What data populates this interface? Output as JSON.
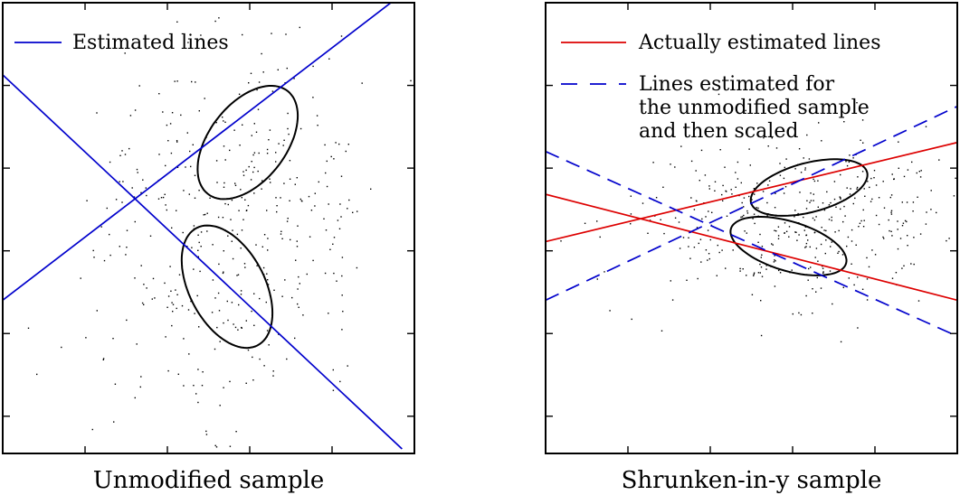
{
  "chart_data": [
    {
      "type": "scatter",
      "title": "Unmodified sample",
      "xlim": [
        -5,
        5
      ],
      "ylim": [
        -5,
        5
      ],
      "grid": false,
      "legend_placement": "top-left",
      "legend": [
        {
          "label": "Estimated lines",
          "color": "#0000cc",
          "style": "solid"
        }
      ],
      "lines": [
        {
          "name": "Estimated lines",
          "points": [
            [
              -5,
              -1.6
            ],
            [
              5,
              5.4
            ]
          ],
          "color": "#0000cc",
          "style": "solid"
        },
        {
          "name": "Estimated lines",
          "points": [
            [
              -5,
              3.4
            ],
            [
              4.7,
              -4.9
            ]
          ],
          "color": "#0000cc",
          "style": "solid"
        }
      ],
      "ellipses": [
        {
          "cx": 0.95,
          "cy": 1.9,
          "rx": 1.5,
          "ry": 0.9,
          "angle_deg": 47
        },
        {
          "cx": 0.45,
          "cy": -1.3,
          "rx": 1.5,
          "ry": 0.9,
          "angle_deg": -58
        }
      ],
      "scatter": {
        "n": 420,
        "center": [
          0.5,
          0.2
        ],
        "spread": [
          1.9,
          2.3
        ],
        "corr": 0.08
      }
    },
    {
      "type": "scatter",
      "title": "Shrunken-in-y sample",
      "xlim": [
        -5,
        5
      ],
      "ylim": [
        -5,
        5
      ],
      "grid": false,
      "legend_placement": "top-left",
      "legend": [
        {
          "label": "Actually estimated lines",
          "color": "#dd0000",
          "style": "solid"
        },
        {
          "label": "Lines estimated for the unmodified sample and then scaled",
          "lines": [
            "Lines estimated for",
            "the unmodified sample",
            "and then scaled"
          ],
          "color": "#0000cc",
          "style": "dashed"
        }
      ],
      "lines": [
        {
          "name": "Actually estimated lines",
          "points": [
            [
              -5,
              -0.3
            ],
            [
              5,
              1.9
            ]
          ],
          "color": "#dd0000",
          "style": "solid"
        },
        {
          "name": "Actually estimated lines",
          "points": [
            [
              -5,
              0.75
            ],
            [
              5,
              -1.6
            ]
          ],
          "color": "#dd0000",
          "style": "solid"
        },
        {
          "name": "Lines estimated for the unmodified sample and then scaled",
          "points": [
            [
              -5,
              -1.6
            ],
            [
              5,
              2.7
            ]
          ],
          "color": "#0000cc",
          "style": "dashed"
        },
        {
          "name": "Lines estimated for the unmodified sample and then scaled",
          "points": [
            [
              -5,
              1.7
            ],
            [
              5,
              -2.4
            ]
          ],
          "color": "#0000cc",
          "style": "dashed"
        }
      ],
      "ellipses": [
        {
          "cx": 1.4,
          "cy": 0.9,
          "rx": 1.45,
          "ry": 0.55,
          "angle_deg": 13
        },
        {
          "cx": 0.9,
          "cy": -0.4,
          "rx": 1.45,
          "ry": 0.55,
          "angle_deg": -15
        }
      ],
      "scatter": {
        "n": 420,
        "center": [
          1.0,
          0.25
        ],
        "spread": [
          1.9,
          0.95
        ],
        "corr": 0.05
      }
    }
  ]
}
